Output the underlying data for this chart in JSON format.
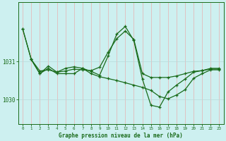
{
  "title": "Graphe pression niveau de la mer (hPa)",
  "bg_color": "#cdf0f0",
  "line_color": "#1a6b1a",
  "grid_color_v": "#e8b0b0",
  "grid_color_h": "#b8dada",
  "xlim": [
    -0.5,
    23.5
  ],
  "ylim": [
    1029.35,
    1032.55
  ],
  "yticks": [
    1030,
    1031
  ],
  "xticks": [
    0,
    1,
    2,
    3,
    4,
    5,
    6,
    7,
    8,
    9,
    10,
    11,
    12,
    13,
    14,
    15,
    16,
    17,
    18,
    19,
    20,
    21,
    22,
    23
  ],
  "line1_x": [
    0,
    1,
    2,
    3,
    4,
    5,
    6,
    7,
    8,
    9,
    10,
    11,
    12,
    13,
    14,
    15,
    16,
    17,
    18,
    19,
    20,
    21,
    22,
    23
  ],
  "line1_y": [
    1031.85,
    1031.05,
    1030.75,
    1030.78,
    1030.72,
    1030.75,
    1030.8,
    1030.78,
    1030.76,
    1030.85,
    1031.25,
    1031.6,
    1031.8,
    1031.58,
    1030.68,
    1030.58,
    1030.58,
    1030.58,
    1030.62,
    1030.68,
    1030.74,
    1030.76,
    1030.8,
    1030.8
  ],
  "line2_x": [
    0,
    1,
    2,
    3,
    4,
    5,
    6,
    7,
    8,
    9,
    10,
    11,
    12,
    13,
    14,
    15,
    16,
    17,
    18,
    19,
    20,
    21,
    22,
    23
  ],
  "line2_y": [
    1031.85,
    1031.05,
    1030.68,
    1030.88,
    1030.72,
    1030.82,
    1030.86,
    1030.82,
    1030.74,
    1030.64,
    1031.15,
    1031.72,
    1031.92,
    1031.55,
    1030.54,
    1029.85,
    1029.8,
    1030.2,
    1030.38,
    1030.54,
    1030.72,
    1030.76,
    1030.82,
    1030.82
  ],
  "line3_x": [
    1,
    2,
    3,
    4,
    5,
    6,
    7,
    8,
    9,
    10,
    11,
    12,
    13,
    14,
    15,
    16,
    17,
    18,
    19,
    20,
    21,
    22,
    23
  ],
  "line3_y": [
    1031.05,
    1030.68,
    1030.82,
    1030.68,
    1030.68,
    1030.68,
    1030.82,
    1030.68,
    1030.6,
    1030.55,
    1030.5,
    1030.44,
    1030.38,
    1030.32,
    1030.24,
    1030.08,
    1030.02,
    1030.12,
    1030.26,
    1030.56,
    1030.68,
    1030.78,
    1030.78
  ]
}
